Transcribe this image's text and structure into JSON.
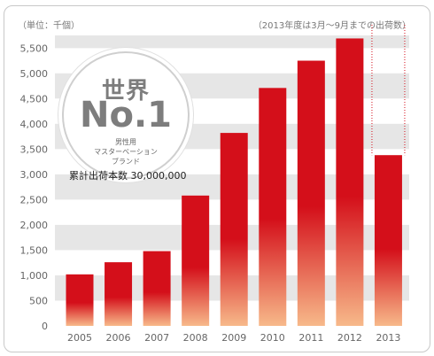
{
  "header": {
    "unit": "（単位：千個）",
    "note": "（2013年度は3月〜9月までの出荷数）"
  },
  "badge": {
    "title": "世界",
    "main": "No.1",
    "sub1": "男性用",
    "sub2": "マスターベーション",
    "sub3": "ブランド"
  },
  "total_shipments": "累計出荷本数 30,000,000",
  "colors": {
    "bar_top": "#d40f1a",
    "bar_bottom": "#f7b98a",
    "band": "#e6e6e6",
    "dotted_line": "#d40f1a"
  },
  "chart_data": {
    "type": "bar",
    "categories": [
      "2005",
      "2006",
      "2007",
      "2008",
      "2009",
      "2010",
      "2011",
      "2012",
      "2013"
    ],
    "values": [
      1020,
      1260,
      1480,
      2580,
      3820,
      4710,
      5250,
      5690,
      3380
    ],
    "ylim": [
      0,
      5750
    ],
    "yticks": [
      "0",
      "500",
      "1,000",
      "1,500",
      "2,000",
      "2,500",
      "3,000",
      "3,500",
      "4,000",
      "4,500",
      "5,000",
      "5,500"
    ],
    "grid": "alternating bands"
  }
}
